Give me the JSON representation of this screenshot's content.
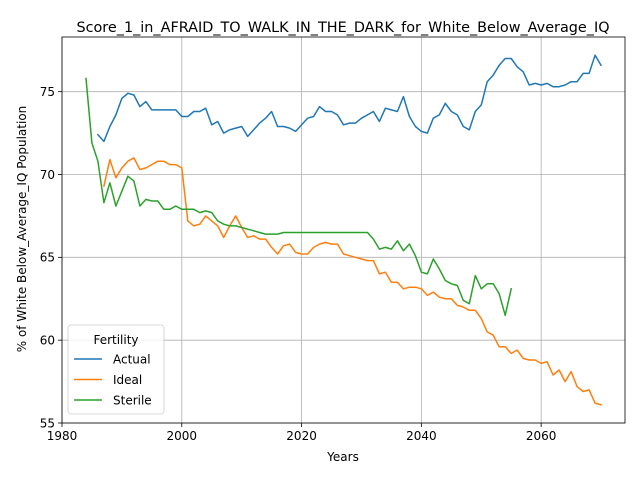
{
  "chart_data": {
    "type": "line",
    "title": "Score_1_in_AFRAID_TO_WALK_IN_THE_DARK_for_White_Below_Average_IQ",
    "xlabel": "Years",
    "ylabel": "% of White Below_Average_IQ Population",
    "xlim": [
      1980,
      2074
    ],
    "ylim": [
      55,
      78.3
    ],
    "x_ticks": [
      1980,
      2000,
      2020,
      2040,
      2060
    ],
    "y_ticks": [
      55,
      60,
      65,
      70,
      75
    ],
    "grid": true,
    "legend": {
      "title": "Fertility",
      "placement": "lower-left"
    },
    "series": [
      {
        "name": "Actual",
        "color": "#1f77b4",
        "x": [
          1986,
          1987,
          1988,
          1989,
          1990,
          1991,
          1992,
          1993,
          1994,
          1995,
          1996,
          1997,
          1998,
          1999,
          2000,
          2001,
          2002,
          2003,
          2004,
          2005,
          2006,
          2007,
          2008,
          2009,
          2010,
          2011,
          2012,
          2013,
          2014,
          2015,
          2016,
          2017,
          2018,
          2019,
          2020,
          2021,
          2022,
          2023,
          2024,
          2025,
          2026,
          2027,
          2028,
          2029,
          2030,
          2031,
          2032,
          2033,
          2034,
          2035,
          2036,
          2037,
          2038,
          2039,
          2040,
          2041,
          2042,
          2043,
          2044,
          2045,
          2046,
          2047,
          2048,
          2049,
          2050,
          2051,
          2052,
          2053,
          2054,
          2055,
          2056,
          2057,
          2058,
          2059,
          2060,
          2061,
          2062,
          2063,
          2064,
          2065,
          2066,
          2067,
          2068,
          2069,
          2070
        ],
        "values": [
          72.4,
          72.0,
          72.9,
          73.6,
          74.6,
          74.9,
          74.8,
          74.1,
          74.4,
          73.9,
          73.9,
          73.9,
          73.9,
          73.9,
          73.5,
          73.5,
          73.8,
          73.8,
          74.0,
          73.0,
          73.2,
          72.5,
          72.7,
          72.8,
          72.9,
          72.3,
          72.7,
          73.1,
          73.4,
          73.8,
          72.9,
          72.9,
          72.8,
          72.6,
          73.0,
          73.4,
          73.5,
          74.1,
          73.8,
          73.8,
          73.6,
          73.0,
          73.1,
          73.1,
          73.4,
          73.6,
          73.8,
          73.2,
          74.0,
          73.9,
          73.8,
          74.7,
          73.5,
          72.9,
          72.6,
          72.5,
          73.4,
          73.6,
          74.3,
          73.8,
          73.6,
          72.9,
          72.7,
          73.8,
          74.2,
          75.6,
          76.0,
          76.6,
          77.0,
          77.0,
          76.5,
          76.2,
          75.4,
          75.5,
          75.4,
          75.5,
          75.3,
          75.3,
          75.4,
          75.6,
          75.6,
          76.1,
          76.1,
          77.2,
          76.6
        ]
      },
      {
        "name": "Ideal",
        "color": "#ff7f0e",
        "x": [
          1987,
          1988,
          1989,
          1990,
          1991,
          1992,
          1993,
          1994,
          1995,
          1996,
          1997,
          1998,
          1999,
          2000,
          2001,
          2002,
          2003,
          2004,
          2005,
          2006,
          2007,
          2008,
          2009,
          2010,
          2011,
          2012,
          2013,
          2014,
          2015,
          2016,
          2017,
          2018,
          2019,
          2020,
          2021,
          2022,
          2023,
          2024,
          2025,
          2026,
          2027,
          2028,
          2029,
          2030,
          2031,
          2032,
          2033,
          2034,
          2035,
          2036,
          2037,
          2038,
          2039,
          2040,
          2041,
          2042,
          2043,
          2044,
          2045,
          2046,
          2047,
          2048,
          2049,
          2050,
          2051,
          2052,
          2053,
          2054,
          2055,
          2056,
          2057,
          2058,
          2059,
          2060,
          2061,
          2062,
          2063,
          2064,
          2065,
          2066,
          2067,
          2068,
          2069,
          2070
        ],
        "values": [
          69.3,
          70.9,
          69.8,
          70.4,
          70.8,
          71.0,
          70.3,
          70.4,
          70.6,
          70.8,
          70.8,
          70.6,
          70.6,
          70.4,
          67.2,
          66.9,
          67.0,
          67.5,
          67.2,
          66.9,
          66.2,
          66.9,
          67.5,
          66.8,
          66.2,
          66.3,
          66.1,
          66.1,
          65.6,
          65.2,
          65.7,
          65.8,
          65.3,
          65.2,
          65.2,
          65.6,
          65.8,
          65.9,
          65.8,
          65.8,
          65.2,
          65.1,
          65.0,
          64.9,
          64.8,
          64.8,
          64.0,
          64.1,
          63.5,
          63.5,
          63.1,
          63.2,
          63.2,
          63.1,
          62.7,
          62.9,
          62.6,
          62.5,
          62.5,
          62.1,
          62.0,
          61.8,
          61.8,
          61.3,
          60.5,
          60.3,
          59.6,
          59.6,
          59.2,
          59.4,
          58.9,
          58.8,
          58.8,
          58.6,
          58.7,
          57.9,
          58.2,
          57.5,
          58.1,
          57.2,
          56.9,
          57.0,
          56.2,
          56.1
        ]
      },
      {
        "name": "Sterile",
        "color": "#2ca02c",
        "x": [
          1984,
          1985,
          1986,
          1987,
          1988,
          1989,
          1990,
          1991,
          1992,
          1993,
          1994,
          1995,
          1996,
          1997,
          1998,
          1999,
          2000,
          2001,
          2002,
          2003,
          2004,
          2005,
          2006,
          2007,
          2008,
          2009,
          2010,
          2011,
          2012,
          2013,
          2014,
          2015,
          2016,
          2017,
          2018,
          2019,
          2020,
          2021,
          2022,
          2023,
          2024,
          2025,
          2026,
          2027,
          2028,
          2029,
          2030,
          2031,
          2032,
          2033,
          2034,
          2035,
          2036,
          2037,
          2038,
          2039,
          2040,
          2041,
          2042,
          2043,
          2044,
          2045,
          2046,
          2047,
          2048,
          2049,
          2050,
          2051,
          2052,
          2053,
          2054,
          2055
        ],
        "values": [
          75.8,
          71.9,
          70.8,
          68.3,
          69.5,
          68.1,
          69.0,
          69.9,
          69.6,
          68.1,
          68.5,
          68.4,
          68.4,
          67.9,
          67.9,
          68.1,
          67.9,
          67.9,
          67.9,
          67.7,
          67.8,
          67.7,
          67.2,
          67.0,
          66.9,
          66.9,
          66.8,
          66.7,
          66.6,
          66.5,
          66.4,
          66.4,
          66.4,
          66.5,
          66.5,
          66.5,
          66.5,
          66.5,
          66.5,
          66.5,
          66.5,
          66.5,
          66.5,
          66.5,
          66.5,
          66.5,
          66.5,
          66.5,
          66.1,
          65.5,
          65.6,
          65.5,
          66.0,
          65.4,
          65.8,
          65.1,
          64.1,
          64.0,
          64.9,
          64.3,
          63.6,
          63.4,
          63.3,
          62.4,
          62.2,
          63.9,
          63.1,
          63.4,
          63.4,
          62.8,
          61.5,
          63.1
        ]
      }
    ]
  }
}
